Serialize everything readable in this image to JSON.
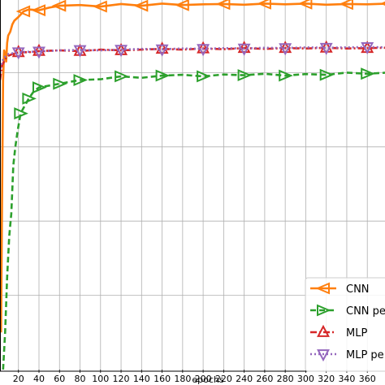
{
  "chart_data": {
    "type": "line",
    "xlabel": "epochs",
    "ylabel": "",
    "title": "",
    "xlim": [
      2,
      382
    ],
    "ylim": [
      0,
      1
    ],
    "x_ticks": [
      "20",
      "40",
      "60",
      "80",
      "100",
      "120",
      "140",
      "160",
      "180",
      "200",
      "220",
      "240",
      "260",
      "280",
      "300",
      "320",
      "340",
      "360"
    ],
    "grid": true,
    "legend_position": "bottom-right",
    "series": [
      {
        "name": "CNN",
        "color": "#ff7f0e",
        "line_style": "solid",
        "marker": "triangle-left",
        "x": [
          3,
          4,
          5,
          6,
          7,
          8,
          9,
          10,
          12,
          14,
          16,
          20,
          25,
          30,
          40,
          50,
          60,
          80,
          100,
          120,
          140,
          160,
          180,
          200,
          220,
          240,
          260,
          280,
          300,
          320,
          340,
          360,
          380
        ],
        "y": [
          0.1,
          0.45,
          0.78,
          0.86,
          0.85,
          0.83,
          0.88,
          0.9,
          0.91,
          0.93,
          0.94,
          0.95,
          0.965,
          0.97,
          0.968,
          0.975,
          0.98,
          0.982,
          0.978,
          0.985,
          0.98,
          0.986,
          0.982,
          0.984,
          0.985,
          0.983,
          0.986,
          0.984,
          0.986,
          0.983,
          0.985,
          0.984,
          0.986
        ]
      },
      {
        "name": "CNN pe",
        "color": "#2ca02c",
        "line_style": "dashed",
        "marker": "triangle-right",
        "x": [
          5,
          7,
          9,
          11,
          13,
          15,
          17,
          19,
          22,
          26,
          30,
          35,
          40,
          50,
          60,
          70,
          80,
          100,
          120,
          140,
          160,
          180,
          200,
          220,
          240,
          260,
          280,
          300,
          320,
          340,
          360,
          380
        ],
        "y": [
          0.0,
          0.1,
          0.25,
          0.36,
          0.42,
          0.55,
          0.6,
          0.64,
          0.69,
          0.71,
          0.73,
          0.75,
          0.76,
          0.765,
          0.77,
          0.775,
          0.78,
          0.782,
          0.79,
          0.786,
          0.792,
          0.794,
          0.79,
          0.795,
          0.793,
          0.797,
          0.792,
          0.796,
          0.794,
          0.8,
          0.797,
          0.8
        ]
      },
      {
        "name": "MLP",
        "color": "#d62728",
        "line_style": "dashdot",
        "marker": "triangle-up",
        "x": [
          2,
          4,
          6,
          8,
          10,
          14,
          20,
          30,
          40,
          60,
          80,
          100,
          120,
          140,
          160,
          180,
          200,
          220,
          240,
          260,
          280,
          300,
          320,
          340,
          360,
          380
        ],
        "y": [
          0.78,
          0.82,
          0.83,
          0.84,
          0.845,
          0.85,
          0.855,
          0.855,
          0.858,
          0.86,
          0.858,
          0.862,
          0.86,
          0.862,
          0.864,
          0.862,
          0.865,
          0.863,
          0.866,
          0.864,
          0.866,
          0.865,
          0.867,
          0.865,
          0.866,
          0.867
        ]
      },
      {
        "name": "MLP pe",
        "color": "#9467bd",
        "line_style": "dotted",
        "marker": "triangle-down",
        "x": [
          2,
          4,
          6,
          8,
          10,
          14,
          20,
          30,
          40,
          60,
          80,
          100,
          120,
          140,
          160,
          180,
          200,
          220,
          240,
          260,
          280,
          300,
          320,
          340,
          360,
          380
        ],
        "y": [
          0.8,
          0.83,
          0.84,
          0.845,
          0.85,
          0.852,
          0.855,
          0.856,
          0.857,
          0.86,
          0.861,
          0.86,
          0.862,
          0.864,
          0.863,
          0.865,
          0.864,
          0.866,
          0.865,
          0.867,
          0.866,
          0.868,
          0.867,
          0.868,
          0.869,
          0.868
        ]
      }
    ]
  }
}
